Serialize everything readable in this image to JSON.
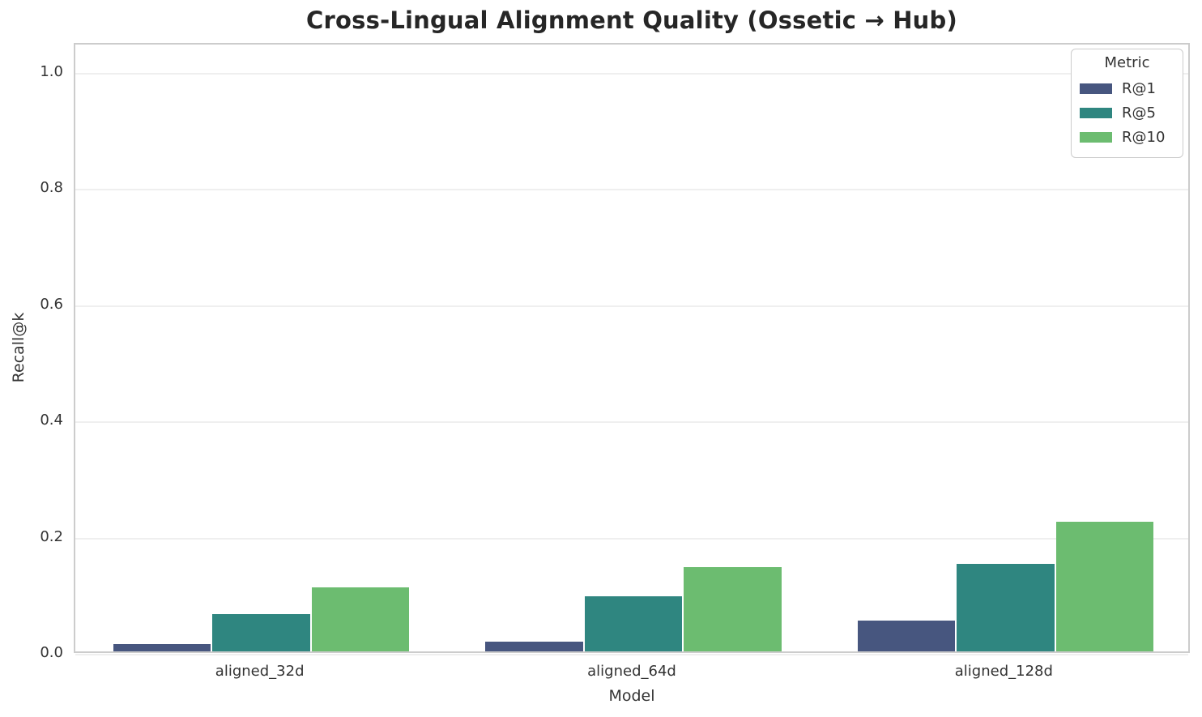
{
  "title": "Cross-Lingual Alignment Quality (Ossetic → Hub)",
  "chart_data": {
    "type": "bar",
    "categories": [
      "aligned_32d",
      "aligned_64d",
      "aligned_128d"
    ],
    "series": [
      {
        "name": "R@1",
        "color": "#47567f",
        "values": [
          0.012,
          0.017,
          0.053
        ]
      },
      {
        "name": "R@5",
        "color": "#2f8680",
        "values": [
          0.064,
          0.095,
          0.15
        ]
      },
      {
        "name": "R@10",
        "color": "#6cbc70",
        "values": [
          0.11,
          0.145,
          0.223
        ]
      }
    ],
    "xlabel": "Model",
    "ylabel": "Recall@k",
    "ylim": [
      0,
      1.05
    ],
    "yticks": [
      0.0,
      0.2,
      0.4,
      0.6,
      0.8,
      1.0
    ],
    "ytick_labels": [
      "0.0",
      "0.2",
      "0.4",
      "0.6",
      "0.8",
      "1.0"
    ],
    "legend_title": "Metric",
    "legend_position": "upper right",
    "grid": "horizontal",
    "grid_color": "#efefef",
    "axes_border_color": "#cccccc",
    "text_color": "#333333",
    "background_color": "#ffffff"
  }
}
